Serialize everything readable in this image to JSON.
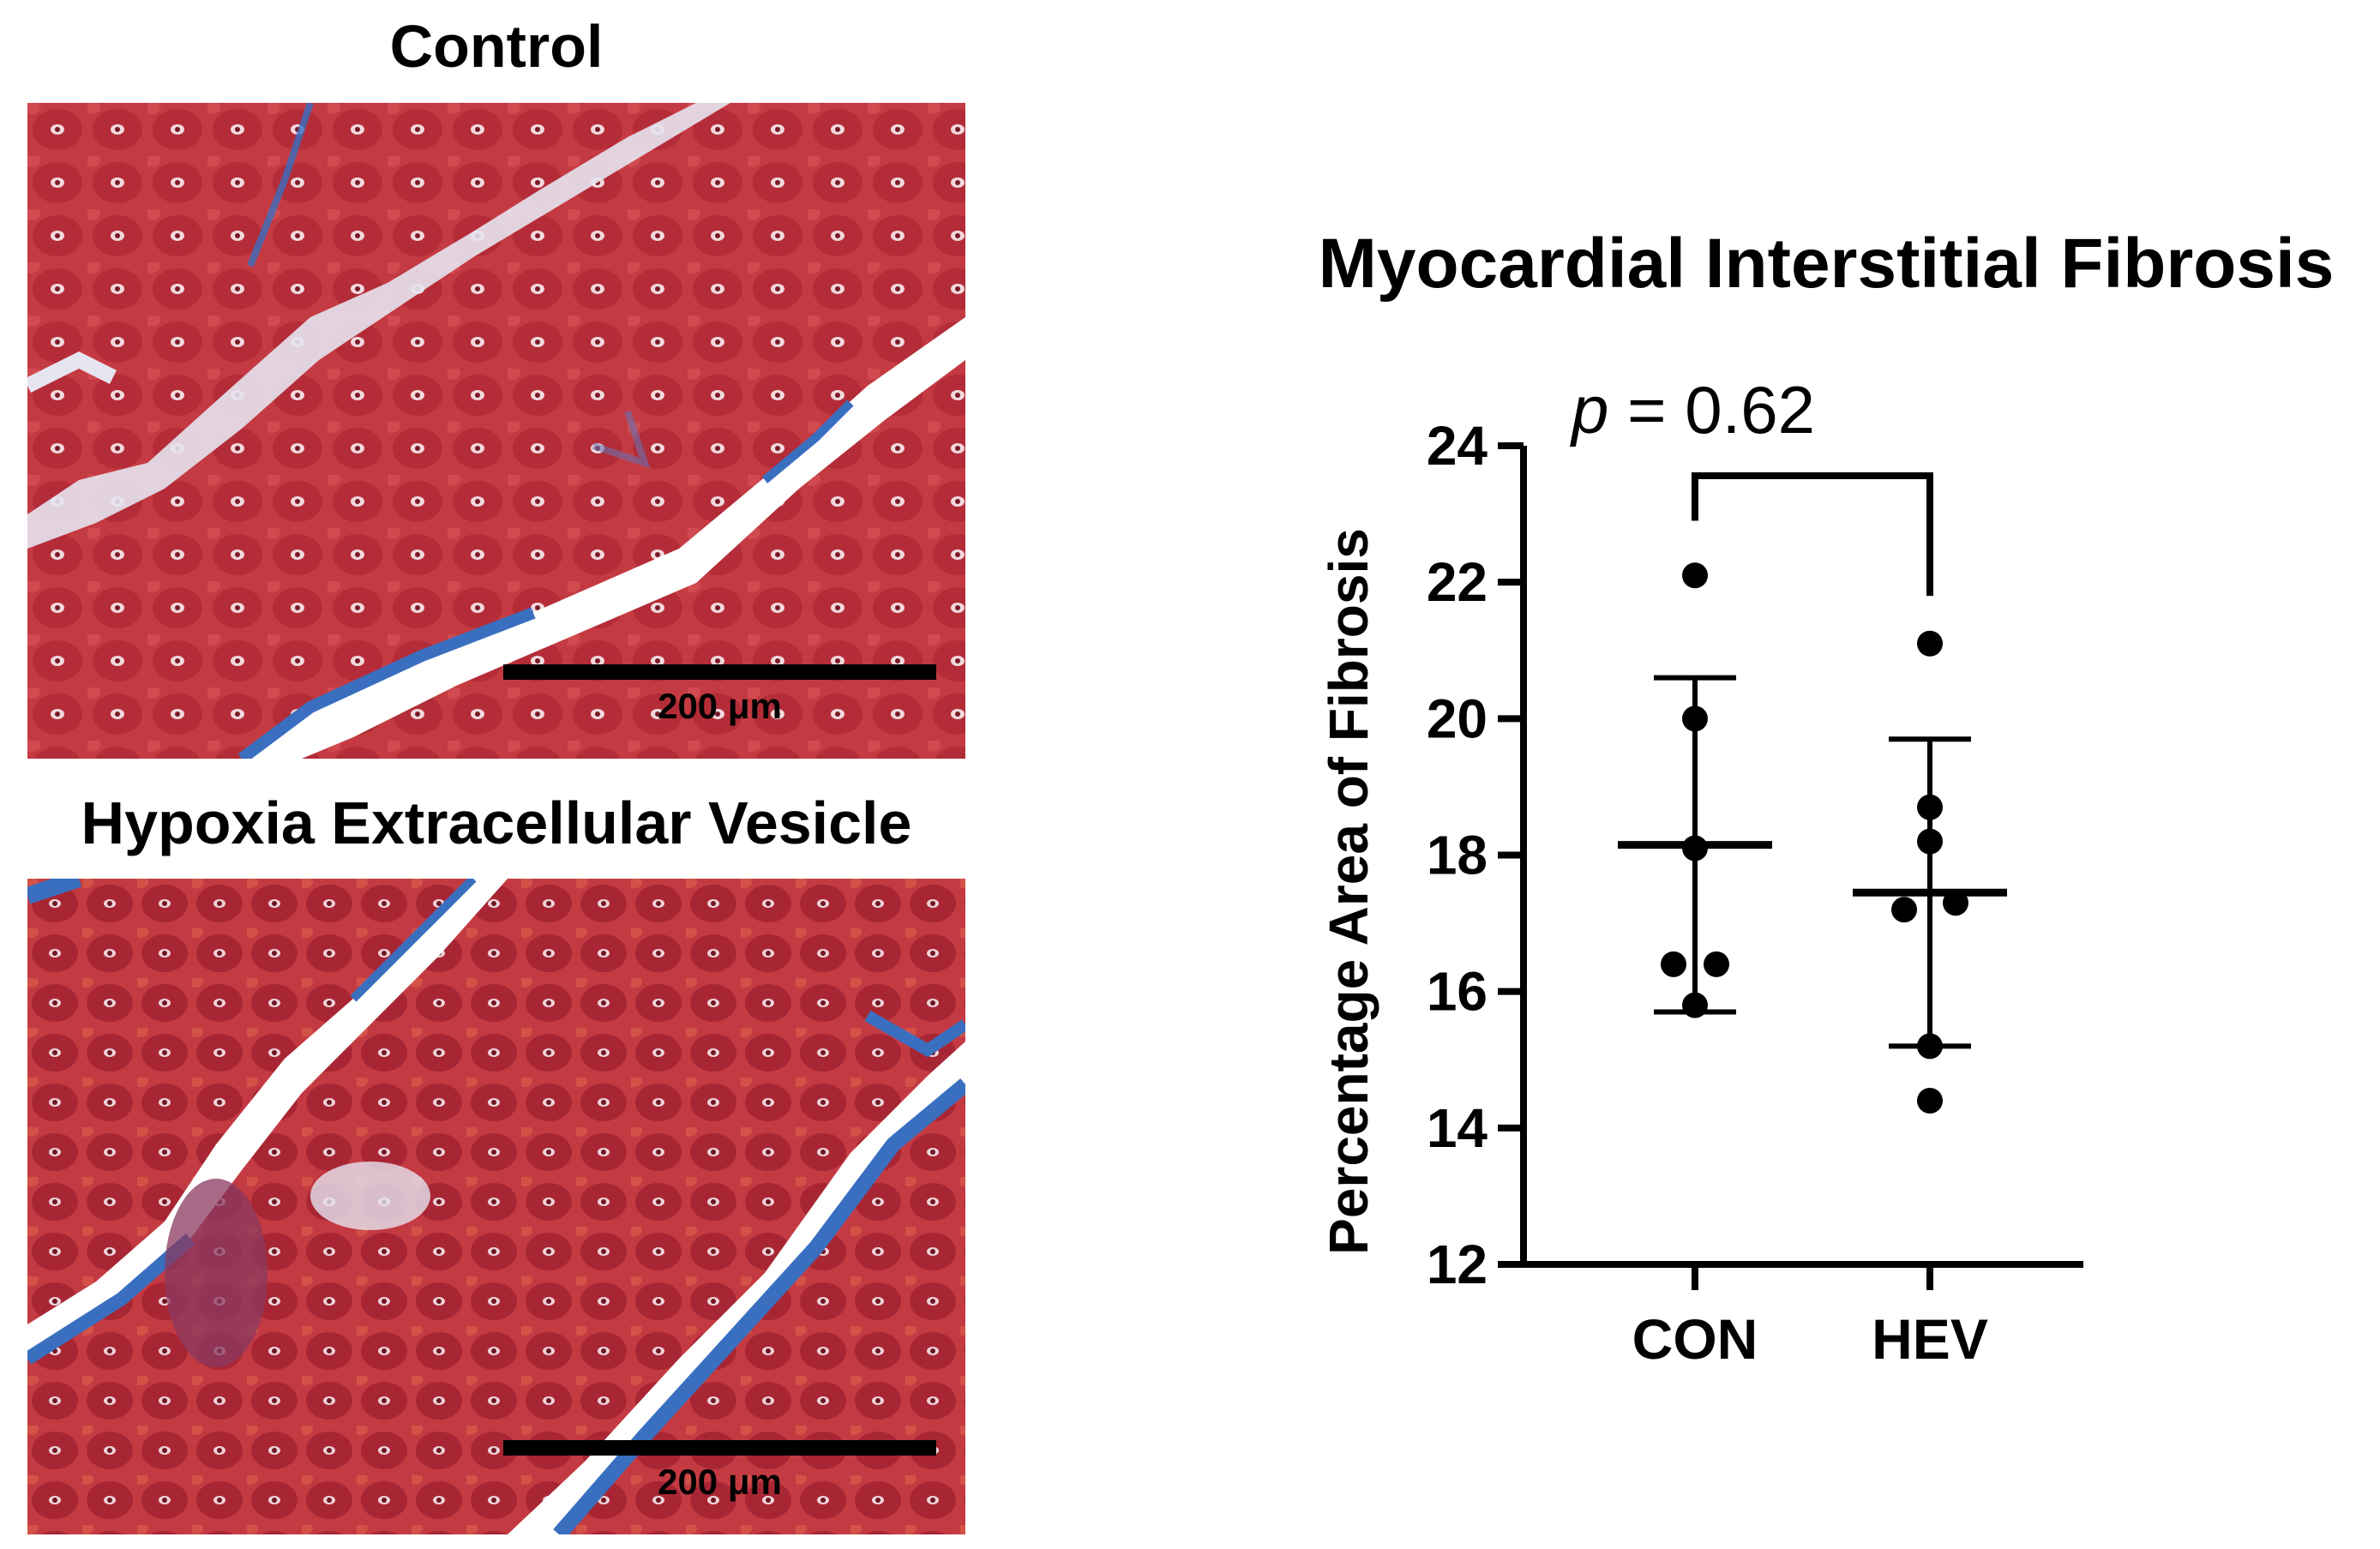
{
  "panels": {
    "control": {
      "title": "Control",
      "scale_bar": "200 μm"
    },
    "hev": {
      "title": "Hypoxia Extracellular Vesicle",
      "scale_bar": "200 μm"
    }
  },
  "colors": {
    "tissue_red": "#c43a42",
    "tissue_dark": "#9b2430",
    "collagen_blue": "#3a6fc0",
    "background_white": "#ffffff",
    "ink": "#000000"
  },
  "chart_data": {
    "type": "scatter",
    "title": "Myocardial Interstitial Fibrosis",
    "xlabel": "",
    "ylabel": "Percentage Area of Fibrosis",
    "categories": [
      "CON",
      "HEV"
    ],
    "ylim": [
      12,
      24
    ],
    "yticks": [
      12,
      14,
      16,
      18,
      20,
      22,
      24
    ],
    "grid": false,
    "series": [
      {
        "category": "CON",
        "points": [
          22.1,
          20.0,
          18.1,
          16.4,
          16.4,
          15.8
        ],
        "mean": 18.15,
        "sd_low": 15.7,
        "sd_high": 20.6
      },
      {
        "category": "HEV",
        "points": [
          21.1,
          18.7,
          18.2,
          17.3,
          17.2,
          15.2,
          14.4
        ],
        "mean": 17.45,
        "sd_low": 15.2,
        "sd_high": 19.7
      }
    ],
    "annotation": {
      "p_symbol": "p",
      "p_text": " = 0.62"
    }
  }
}
